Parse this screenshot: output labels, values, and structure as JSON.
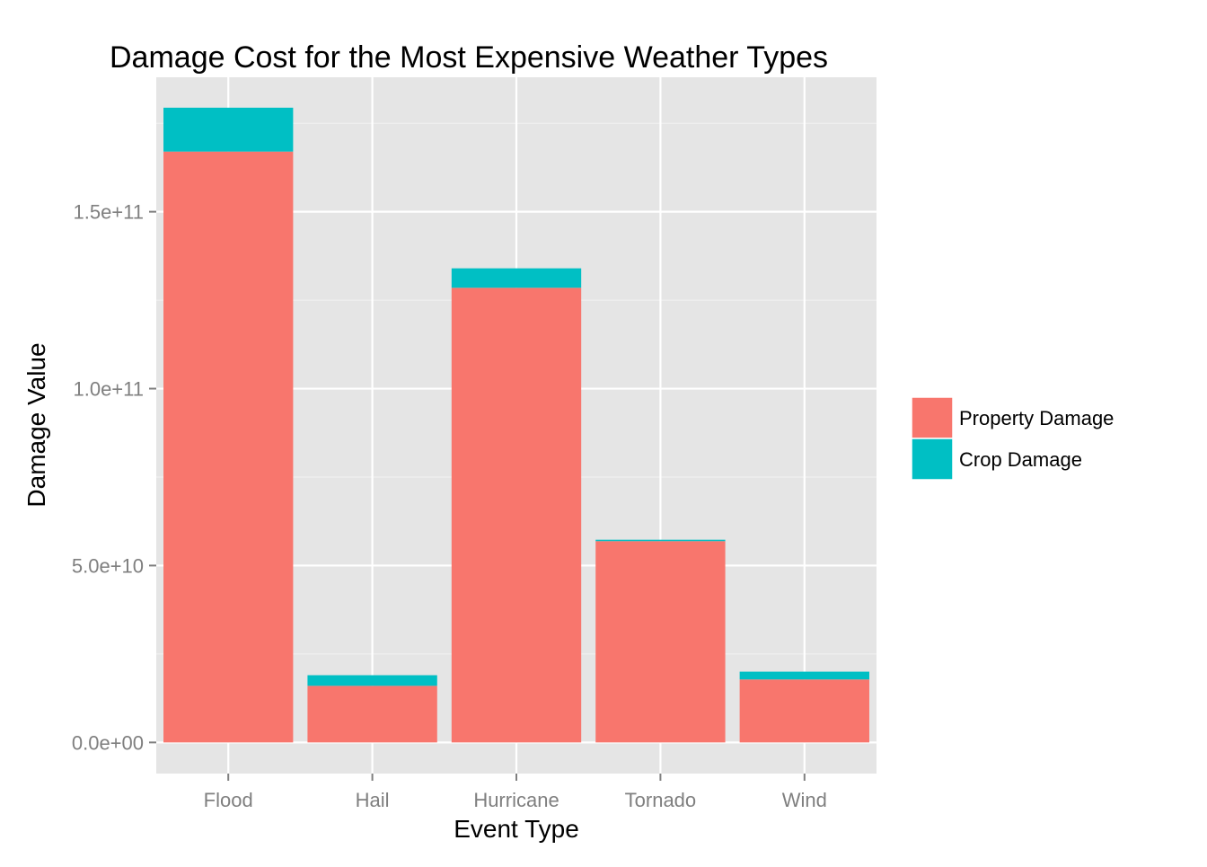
{
  "chart_data": {
    "type": "bar",
    "stacked": true,
    "title": "Damage Cost for the Most Expensive Weather Types",
    "xlabel": "Event Type",
    "ylabel": "Damage Value",
    "categories": [
      "Flood",
      "Hail",
      "Hurricane",
      "Tornado",
      "Wind"
    ],
    "series": [
      {
        "name": "Property Damage",
        "color": "#F8766D",
        "values": [
          167000000000,
          16000000000,
          128500000000,
          56900000000,
          17800000000
        ]
      },
      {
        "name": "Crop Damage",
        "color": "#00BFC4",
        "values": [
          12400000000,
          3000000000,
          5500000000,
          400000000,
          2200000000
        ]
      }
    ],
    "ylim": [
      -8800000000,
      188000000000
    ],
    "yticks": [
      0,
      50000000000,
      100000000000,
      150000000000
    ],
    "ytick_labels": [
      "0.0e+00",
      "5.0e+10",
      "1.0e+11",
      "1.5e+11"
    ],
    "grid": true,
    "legend_position": "right",
    "colors": {
      "panel_background": "#E5E5E5",
      "grid_major": "#FFFFFF",
      "grid_minor": "#F2F2F2",
      "tick_label": "#7F7F7F",
      "text": "#000000"
    }
  }
}
